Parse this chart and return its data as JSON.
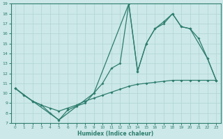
{
  "xlabel": "Humidex (Indice chaleur)",
  "xlim": [
    -0.5,
    23.5
  ],
  "ylim": [
    7,
    19
  ],
  "xticks": [
    0,
    1,
    2,
    3,
    4,
    5,
    6,
    7,
    8,
    9,
    10,
    11,
    12,
    13,
    14,
    15,
    16,
    17,
    18,
    19,
    20,
    21,
    22,
    23
  ],
  "yticks": [
    7,
    8,
    9,
    10,
    11,
    12,
    13,
    14,
    15,
    16,
    17,
    18,
    19
  ],
  "bg_color": "#cce8e8",
  "line_color": "#2d7d6e",
  "grid_color": "#b0d4d4",
  "line1_x": [
    0,
    1,
    2,
    3,
    4,
    5,
    6,
    7,
    8,
    9,
    10,
    11,
    12,
    13,
    14,
    15,
    16,
    17,
    18,
    19,
    20,
    21,
    22,
    23
  ],
  "line1_y": [
    10.5,
    9.8,
    9.2,
    8.8,
    8.0,
    7.3,
    8.3,
    8.7,
    9.0,
    10.0,
    11.0,
    12.5,
    13.0,
    19.0,
    12.2,
    15.0,
    16.5,
    17.0,
    18.0,
    16.7,
    16.5,
    15.5,
    13.5,
    11.3
  ],
  "line2_x": [
    0,
    2,
    5,
    9,
    13,
    14,
    15,
    16,
    17,
    18,
    19,
    20,
    22,
    23
  ],
  "line2_y": [
    10.5,
    9.2,
    7.3,
    10.0,
    19.0,
    12.2,
    15.0,
    16.5,
    17.2,
    18.0,
    16.7,
    16.5,
    13.5,
    11.3
  ],
  "line3_x": [
    0,
    1,
    2,
    3,
    4,
    5,
    6,
    7,
    8,
    9,
    10,
    11,
    12,
    13,
    14,
    15,
    16,
    17,
    18,
    19,
    20,
    21,
    22,
    23
  ],
  "line3_y": [
    10.5,
    9.8,
    9.2,
    8.8,
    8.5,
    8.2,
    8.5,
    8.8,
    9.2,
    9.5,
    9.8,
    10.1,
    10.4,
    10.7,
    10.9,
    11.0,
    11.1,
    11.2,
    11.3,
    11.3,
    11.3,
    11.3,
    11.3,
    11.3
  ]
}
